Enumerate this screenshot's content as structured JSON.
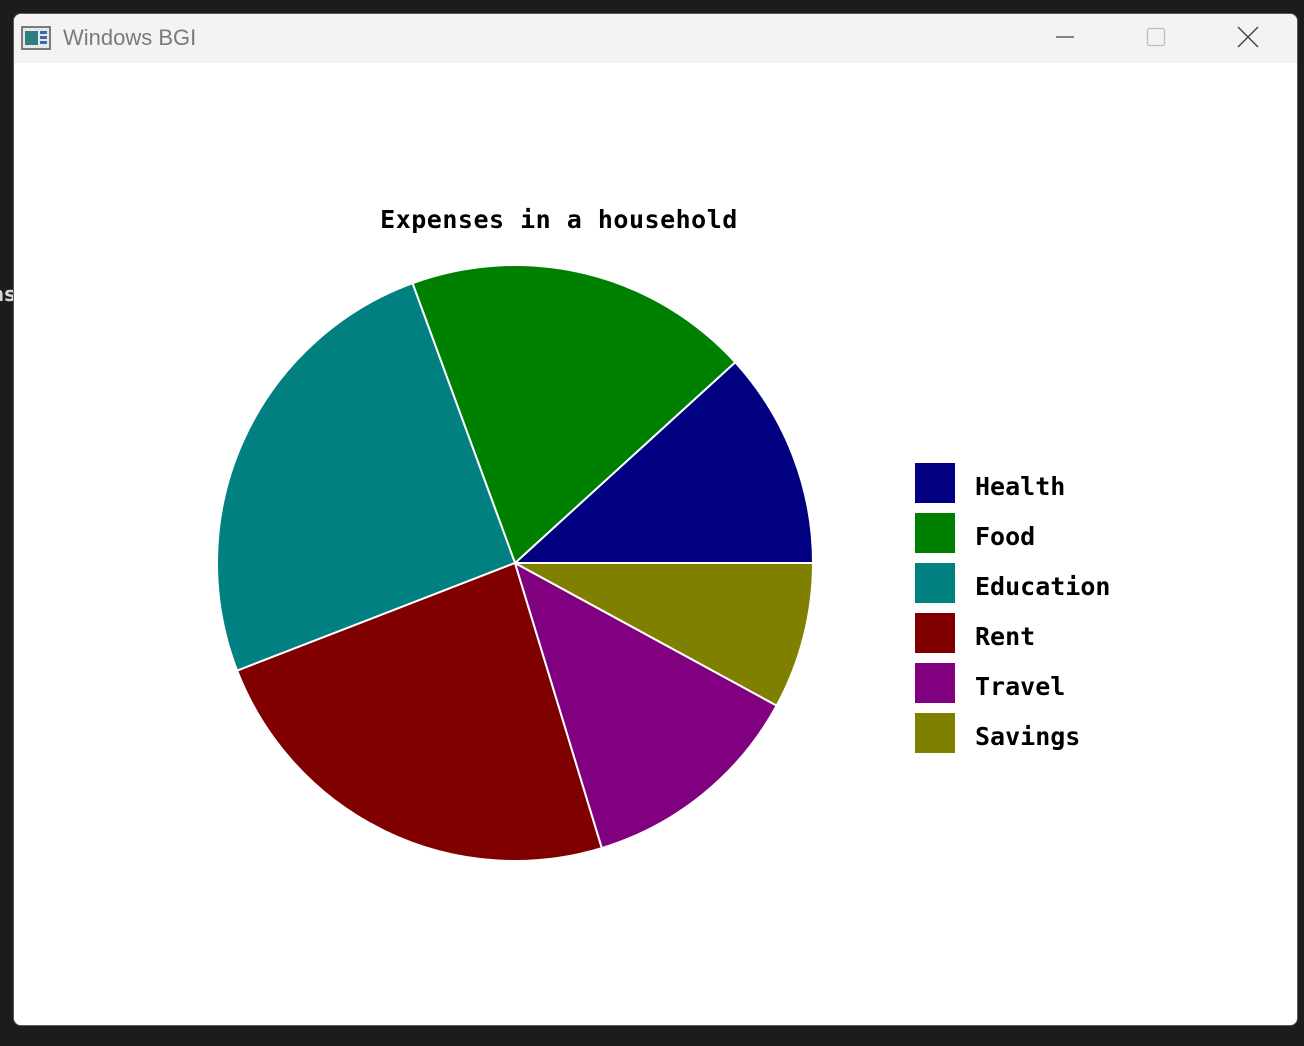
{
  "desktop": {
    "edge_text": "ns"
  },
  "window": {
    "title": "Windows BGI",
    "icon": "bgi-app-icon",
    "controls": [
      "minimize-icon",
      "maximize-icon",
      "close-icon"
    ]
  },
  "chart_data": {
    "type": "pie",
    "title": "Expenses in a household",
    "legend_position": "right",
    "start_angle_deg": 0,
    "direction": "counterclockwise",
    "slices": [
      {
        "label": "Health",
        "value": 40,
        "color": "#000080"
      },
      {
        "label": "Food",
        "value": 64,
        "color": "#008000"
      },
      {
        "label": "Education",
        "value": 86,
        "color": "#008080"
      },
      {
        "label": "Rent",
        "value": 81,
        "color": "#800000"
      },
      {
        "label": "Travel",
        "value": 42,
        "color": "#800080"
      },
      {
        "label": "Savings",
        "value": 27,
        "color": "#808000"
      }
    ],
    "legend": [
      "Health",
      "Food",
      "Education",
      "Rent",
      "Travel",
      "Savings"
    ]
  }
}
